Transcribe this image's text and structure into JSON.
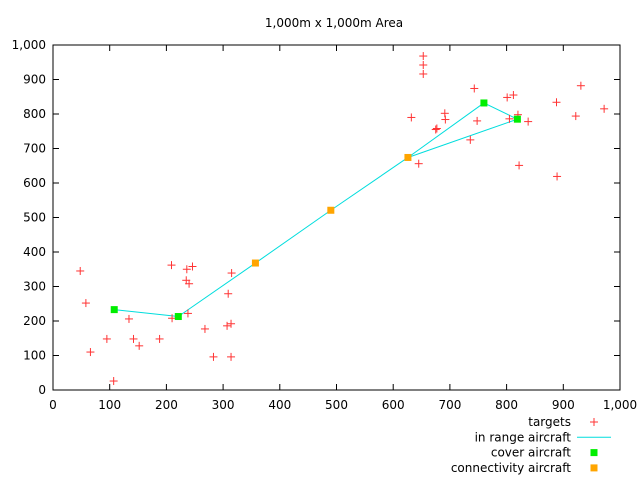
{
  "chart_data": {
    "type": "scatter",
    "title": "1,000m x 1,000m Area",
    "xlabel": "",
    "ylabel": "",
    "xlim": [
      0,
      1000
    ],
    "ylim": [
      0,
      1000
    ],
    "xticks": [
      0,
      100,
      200,
      300,
      400,
      500,
      600,
      700,
      800,
      900,
      1000
    ],
    "yticks": [
      0,
      100,
      200,
      300,
      400,
      500,
      600,
      700,
      800,
      900,
      1000
    ],
    "xtick_labels": [
      "0",
      "100",
      "200",
      "300",
      "400",
      "500",
      "600",
      "700",
      "800",
      "900",
      "1,000"
    ],
    "ytick_labels": [
      "0",
      "100",
      "200",
      "300",
      "400",
      "500",
      "600",
      "700",
      "800",
      "900",
      "1,000"
    ],
    "grid": false,
    "legend_position": "bottom-right",
    "series": [
      {
        "name": "targets",
        "marker": "plus",
        "color": "#ff3333",
        "points": [
          [
            48,
            345
          ],
          [
            58,
            252
          ],
          [
            66,
            110
          ],
          [
            95,
            148
          ],
          [
            107,
            26
          ],
          [
            134,
            206
          ],
          [
            142,
            148
          ],
          [
            152,
            128
          ],
          [
            188,
            148
          ],
          [
            209,
            362
          ],
          [
            210,
            208
          ],
          [
            235,
            318
          ],
          [
            236,
            350
          ],
          [
            238,
            222
          ],
          [
            240,
            308
          ],
          [
            246,
            358
          ],
          [
            268,
            177
          ],
          [
            283,
            96
          ],
          [
            307,
            186
          ],
          [
            309,
            279
          ],
          [
            314,
            96
          ],
          [
            314,
            192
          ],
          [
            315,
            339
          ],
          [
            632,
            790
          ],
          [
            645,
            656
          ],
          [
            653,
            968
          ],
          [
            653,
            942
          ],
          [
            653,
            916
          ],
          [
            675,
            755
          ],
          [
            677,
            758
          ],
          [
            691,
            802
          ],
          [
            692,
            784
          ],
          [
            736,
            725
          ],
          [
            743,
            874
          ],
          [
            748,
            780
          ],
          [
            801,
            848
          ],
          [
            805,
            786
          ],
          [
            812,
            855
          ],
          [
            820,
            798
          ],
          [
            822,
            651
          ],
          [
            838,
            778
          ],
          [
            888,
            834
          ],
          [
            889,
            619
          ],
          [
            922,
            794
          ],
          [
            931,
            882
          ],
          [
            972,
            815
          ]
        ]
      },
      {
        "name": "in range aircraft",
        "marker": "line",
        "color": "#00dddd",
        "segments": [
          [
            [
              108,
              233
            ],
            [
              221,
              213
            ]
          ],
          [
            [
              221,
              213
            ],
            [
              357,
              368
            ]
          ],
          [
            [
              357,
              368
            ],
            [
              490,
              521
            ]
          ],
          [
            [
              490,
              521
            ],
            [
              626,
              674
            ]
          ],
          [
            [
              626,
              674
            ],
            [
              760,
              832
            ]
          ],
          [
            [
              626,
              674
            ],
            [
              819,
              785
            ]
          ],
          [
            [
              760,
              832
            ],
            [
              819,
              785
            ]
          ]
        ]
      },
      {
        "name": "cover aircraft",
        "marker": "square",
        "color": "#00ee00",
        "points": [
          [
            108,
            233
          ],
          [
            221,
            213
          ],
          [
            760,
            832
          ],
          [
            819,
            785
          ]
        ]
      },
      {
        "name": "connectivity aircraft",
        "marker": "square",
        "color": "#ffa500",
        "points": [
          [
            357,
            368
          ],
          [
            490,
            521
          ],
          [
            626,
            674
          ]
        ]
      }
    ]
  }
}
